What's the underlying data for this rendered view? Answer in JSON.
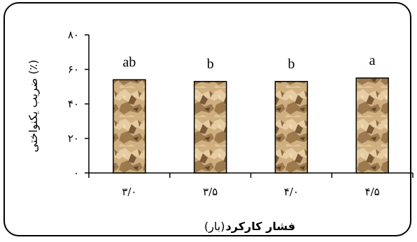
{
  "chart_data": {
    "type": "bar",
    "categories": [
      "۳/۰",
      "۳/۵",
      "۴/۰",
      "۴/۵"
    ],
    "values": [
      54,
      53,
      53,
      55
    ],
    "data_labels": [
      "ab",
      "b",
      "b",
      "a"
    ],
    "ylim": [
      0,
      80
    ],
    "yticks": [
      0,
      20,
      40,
      60,
      80
    ],
    "ytick_labels": [
      "۰",
      "۲۰",
      "۴۰",
      "۶۰",
      "۸۰"
    ],
    "ylabel": "ضریب یکنواختی (٪)",
    "xlabel_bold": "فشار کارکرد",
    "xlabel_unit": "(بار)",
    "grid": false,
    "legend": "none",
    "bar_fill": "stone-texture",
    "colors": {
      "bar_light": "#d9b98a",
      "bar_mid": "#b38e5d",
      "bar_dark": "#6e5234",
      "bar_outline": "#000000",
      "axis": "#000000",
      "frame": "#000000"
    }
  }
}
